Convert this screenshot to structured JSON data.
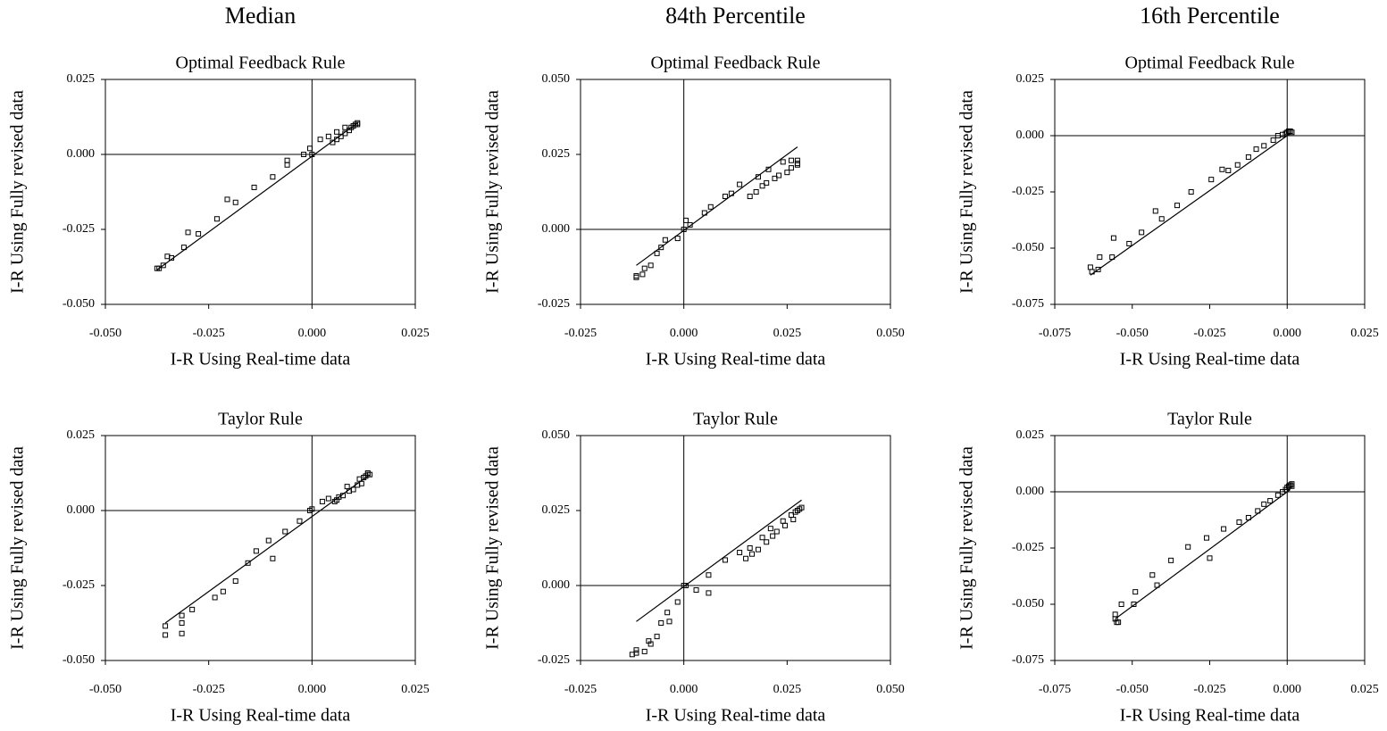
{
  "column_headers": [
    "Median",
    "84th Percentile",
    "16th Percentile"
  ],
  "chart_data": [
    {
      "type": "scatter",
      "title": "Optimal Feedback Rule",
      "xlabel": "I-R Using Real-time data",
      "ylabel": "I-R Using Fully revised data",
      "color": "#000000",
      "x": [
        -0.0375,
        -0.037,
        -0.036,
        -0.035,
        -0.034,
        -0.031,
        -0.03,
        -0.0275,
        -0.023,
        -0.0205,
        -0.0185,
        -0.014,
        -0.0095,
        -0.006,
        -0.006,
        -0.002,
        -0.0005,
        0.0,
        0.002,
        0.004,
        0.005,
        0.006,
        0.006,
        0.007,
        0.008,
        0.008,
        0.009,
        0.0095,
        0.01,
        0.0105,
        0.011,
        0.011
      ],
      "y": [
        -0.038,
        -0.038,
        -0.037,
        -0.034,
        -0.0345,
        -0.031,
        -0.026,
        -0.0265,
        -0.0215,
        -0.015,
        -0.016,
        -0.011,
        -0.0075,
        -0.002,
        -0.0035,
        0.0,
        0.002,
        0.0,
        0.005,
        0.006,
        0.004,
        0.0075,
        0.005,
        0.006,
        0.007,
        0.009,
        0.008,
        0.009,
        0.0095,
        0.01,
        0.0105,
        0.01
      ],
      "fit_line": {
        "x": [
          -0.0375,
          0.011
        ],
        "y": [
          -0.0385,
          0.0105
        ]
      },
      "xlim": [
        -0.05,
        0.025
      ],
      "ylim": [
        -0.05,
        0.025
      ],
      "xticks": [
        {
          "value": -0.05,
          "label": "-0.050"
        },
        -0.025,
        {
          "value": 0,
          "label": "0.000"
        },
        0.025
      ],
      "yticks": [
        {
          "value": -0.05,
          "label": "-0.050"
        },
        -0.025,
        {
          "value": 0,
          "label": "0.000"
        },
        0.025
      ]
    },
    {
      "type": "scatter",
      "title": "Optimal Feedback Rule",
      "xlabel": "I-R Using Real-time data",
      "ylabel": "I-R Using Fully revised data",
      "color": "#000000",
      "x": [
        -0.0115,
        -0.0115,
        -0.01,
        -0.0095,
        -0.008,
        -0.0065,
        -0.0055,
        -0.0045,
        -0.0015,
        0.0,
        0.0005,
        0.0015,
        0.005,
        0.0065,
        0.01,
        0.0115,
        0.0135,
        0.016,
        0.0175,
        0.018,
        0.019,
        0.02,
        0.0205,
        0.022,
        0.023,
        0.024,
        0.025,
        0.026,
        0.026,
        0.0275,
        0.0275,
        0.0275
      ],
      "y": [
        -0.016,
        -0.0155,
        -0.015,
        -0.013,
        -0.012,
        -0.008,
        -0.006,
        -0.0035,
        -0.003,
        0.0,
        0.003,
        0.0015,
        0.0055,
        0.0075,
        0.011,
        0.012,
        0.015,
        0.011,
        0.0125,
        0.0175,
        0.0145,
        0.0155,
        0.02,
        0.017,
        0.018,
        0.0225,
        0.019,
        0.0205,
        0.023,
        0.022,
        0.023,
        0.0215
      ],
      "fit_line": {
        "x": [
          -0.0115,
          0.0275
        ],
        "y": [
          -0.012,
          0.0275
        ]
      },
      "xlim": [
        -0.025,
        0.05
      ],
      "ylim": [
        -0.025,
        0.05
      ],
      "xticks": [
        -0.025,
        {
          "value": 0,
          "label": "0.000"
        },
        0.025,
        {
          "value": 0.05,
          "label": "0.050"
        }
      ],
      "yticks": [
        -0.025,
        {
          "value": 0,
          "label": "0.000"
        },
        0.025,
        {
          "value": 0.05,
          "label": "0.050"
        }
      ]
    },
    {
      "type": "scatter",
      "title": "Optimal Feedback Rule",
      "xlabel": "I-R Using Real-time data",
      "ylabel": "I-R Using Fully revised data",
      "color": "#000000",
      "x": [
        -0.063,
        -0.0635,
        -0.061,
        -0.0605,
        -0.0565,
        -0.056,
        -0.051,
        -0.047,
        -0.0425,
        -0.0405,
        -0.0355,
        -0.031,
        -0.0245,
        -0.021,
        -0.019,
        -0.016,
        -0.0125,
        -0.01,
        -0.0075,
        -0.0045,
        -0.003,
        -0.0015,
        -0.0005,
        0.0,
        0.0005,
        0.001,
        0.0015
      ],
      "y": [
        -0.0605,
        -0.0585,
        -0.0595,
        -0.054,
        -0.054,
        -0.0455,
        -0.048,
        -0.043,
        -0.0335,
        -0.037,
        -0.031,
        -0.025,
        -0.0195,
        -0.015,
        -0.0155,
        -0.013,
        -0.0095,
        -0.006,
        -0.0045,
        -0.002,
        0.0,
        0.0005,
        0.001,
        0.0015,
        0.002,
        0.002,
        0.0015
      ],
      "fit_line": {
        "x": [
          -0.0635,
          0.001
        ],
        "y": [
          -0.062,
          0.001
        ]
      },
      "xlim": [
        -0.075,
        0.025
      ],
      "ylim": [
        -0.075,
        0.025
      ],
      "xticks": [
        -0.075,
        {
          "value": -0.05,
          "label": "-0.050"
        },
        -0.025,
        {
          "value": 0,
          "label": "0.000"
        },
        0.025
      ],
      "yticks": [
        -0.075,
        {
          "value": -0.05,
          "label": "-0.050"
        },
        -0.025,
        {
          "value": 0,
          "label": "0.000"
        },
        0.025
      ]
    },
    {
      "type": "scatter",
      "title": "Taylor Rule",
      "xlabel": "I-R Using Real-time data",
      "ylabel": "I-R Using Fully revised data",
      "color": "#000000",
      "x": [
        -0.0355,
        -0.0355,
        -0.0315,
        -0.0315,
        -0.0315,
        -0.029,
        -0.0235,
        -0.0215,
        -0.0185,
        -0.0155,
        -0.0135,
        -0.0105,
        -0.0095,
        -0.0065,
        -0.003,
        -0.0005,
        0.0,
        0.0025,
        0.004,
        0.0055,
        0.006,
        0.0065,
        0.0075,
        0.0085,
        0.009,
        0.01,
        0.011,
        0.0115,
        0.012,
        0.0125,
        0.013,
        0.0135,
        0.0135,
        0.014
      ],
      "y": [
        -0.0415,
        -0.0385,
        -0.041,
        -0.0375,
        -0.035,
        -0.033,
        -0.029,
        -0.027,
        -0.0235,
        -0.0175,
        -0.0135,
        -0.01,
        -0.016,
        -0.007,
        -0.0035,
        0.0,
        0.0005,
        0.003,
        0.004,
        0.003,
        0.0035,
        0.0045,
        0.005,
        0.008,
        0.0065,
        0.007,
        0.0085,
        0.0105,
        0.009,
        0.011,
        0.0115,
        0.012,
        0.0125,
        0.012
      ],
      "fit_line": {
        "x": [
          -0.0355,
          0.0135
        ],
        "y": [
          -0.0375,
          0.0115
        ]
      },
      "xlim": [
        -0.05,
        0.025
      ],
      "ylim": [
        -0.05,
        0.025
      ],
      "xticks": [
        {
          "value": -0.05,
          "label": "-0.050"
        },
        -0.025,
        {
          "value": 0,
          "label": "0.000"
        },
        0.025
      ],
      "yticks": [
        {
          "value": -0.05,
          "label": "-0.050"
        },
        -0.025,
        {
          "value": 0,
          "label": "0.000"
        },
        0.025
      ]
    },
    {
      "type": "scatter",
      "title": "Taylor Rule",
      "xlabel": "I-R Using Real-time data",
      "ylabel": "I-R Using Fully revised data",
      "color": "#000000",
      "x": [
        -0.0125,
        -0.0115,
        -0.0115,
        -0.0095,
        -0.0085,
        -0.008,
        -0.0065,
        -0.0055,
        -0.004,
        -0.0035,
        -0.0015,
        0.0,
        0.0005,
        0.003,
        0.006,
        0.006,
        0.01,
        0.0135,
        0.015,
        0.016,
        0.0165,
        0.018,
        0.019,
        0.02,
        0.021,
        0.0215,
        0.0225,
        0.024,
        0.0245,
        0.026,
        0.0265,
        0.027,
        0.0275,
        0.028,
        0.0285
      ],
      "y": [
        -0.023,
        -0.0225,
        -0.0215,
        -0.022,
        -0.0185,
        -0.0195,
        -0.017,
        -0.0125,
        -0.009,
        -0.012,
        -0.0055,
        0.0,
        0.0,
        -0.0015,
        0.0035,
        -0.0025,
        0.0085,
        0.011,
        0.009,
        0.0125,
        0.0105,
        0.012,
        0.016,
        0.0145,
        0.019,
        0.0165,
        0.018,
        0.0215,
        0.02,
        0.0235,
        0.022,
        0.0245,
        0.025,
        0.0255,
        0.026
      ],
      "fit_line": {
        "x": [
          -0.0115,
          0.0285
        ],
        "y": [
          -0.012,
          0.0285
        ]
      },
      "xlim": [
        -0.025,
        0.05
      ],
      "ylim": [
        -0.025,
        0.05
      ],
      "xticks": [
        -0.025,
        {
          "value": 0,
          "label": "0.000"
        },
        0.025,
        {
          "value": 0.05,
          "label": "0.050"
        }
      ],
      "yticks": [
        -0.025,
        {
          "value": 0,
          "label": "0.000"
        },
        0.025,
        {
          "value": 0.05,
          "label": "0.050"
        }
      ]
    },
    {
      "type": "scatter",
      "title": "Taylor Rule",
      "xlabel": "I-R Using Real-time data",
      "ylabel": "I-R Using Fully revised data",
      "color": "#000000",
      "x": [
        -0.0555,
        -0.0555,
        -0.055,
        -0.0545,
        -0.0535,
        -0.0495,
        -0.049,
        -0.0435,
        -0.042,
        -0.0375,
        -0.032,
        -0.026,
        -0.025,
        -0.0205,
        -0.0155,
        -0.0125,
        -0.0095,
        -0.0075,
        -0.0055,
        -0.003,
        -0.0015,
        -0.0005,
        0.0,
        0.0005,
        0.001,
        0.0015,
        0.0015
      ],
      "y": [
        -0.0545,
        -0.0565,
        -0.058,
        -0.058,
        -0.05,
        -0.05,
        -0.0445,
        -0.037,
        -0.0415,
        -0.0305,
        -0.0245,
        -0.0205,
        -0.0295,
        -0.0165,
        -0.0135,
        -0.0115,
        -0.0085,
        -0.0055,
        -0.004,
        -0.0015,
        0.0,
        0.001,
        0.002,
        0.0025,
        0.003,
        0.0035,
        0.0025
      ],
      "fit_line": {
        "x": [
          -0.0555,
          0.001
        ],
        "y": [
          -0.0565,
          0.001
        ]
      },
      "xlim": [
        -0.075,
        0.025
      ],
      "ylim": [
        -0.075,
        0.025
      ],
      "xticks": [
        -0.075,
        {
          "value": -0.05,
          "label": "-0.050"
        },
        -0.025,
        {
          "value": 0,
          "label": "0.000"
        },
        0.025
      ],
      "yticks": [
        -0.075,
        {
          "value": -0.05,
          "label": "-0.050"
        },
        -0.025,
        {
          "value": 0,
          "label": "0.000"
        },
        0.025
      ]
    }
  ]
}
